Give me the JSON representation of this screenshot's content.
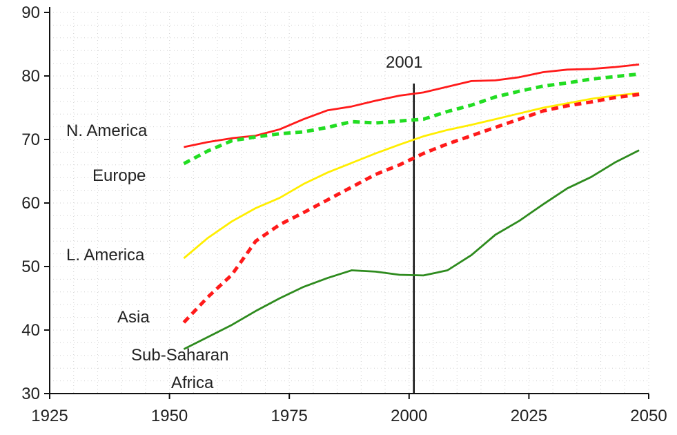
{
  "chart_data": {
    "type": "line",
    "title": "",
    "xlabel": "",
    "ylabel": "",
    "xlim": [
      1925,
      2050
    ],
    "ylim": [
      30,
      90
    ],
    "xticks": [
      1925,
      1950,
      1975,
      2000,
      2025,
      2050
    ],
    "yticks": [
      30,
      40,
      50,
      60,
      70,
      80,
      90
    ],
    "grid": "dotted",
    "legend": "none",
    "annotations": [
      {
        "text": "2001",
        "x": 2001,
        "kind": "vertical-line"
      }
    ],
    "series": [
      {
        "name": "N. America",
        "label_lines": [
          "N. America"
        ],
        "color": "#ff1a1a",
        "style": "solid",
        "x": [
          1953,
          1958,
          1963,
          1968,
          1973,
          1978,
          1983,
          1988,
          1993,
          1998,
          2003,
          2008,
          2013,
          2018,
          2023,
          2028,
          2033,
          2038,
          2043,
          2048
        ],
        "y": [
          68.8,
          69.6,
          70.2,
          70.6,
          71.6,
          73.2,
          74.6,
          75.2,
          76.1,
          76.9,
          77.4,
          78.3,
          79.2,
          79.3,
          79.8,
          80.6,
          81.0,
          81.1,
          81.4,
          81.8
        ]
      },
      {
        "name": "Europe",
        "label_lines": [
          "Europe"
        ],
        "color": "#22dd22",
        "style": "dashed",
        "x": [
          1953,
          1958,
          1963,
          1968,
          1973,
          1978,
          1983,
          1988,
          1993,
          1998,
          2003,
          2008,
          2013,
          2018,
          2023,
          2028,
          2033,
          2038,
          2043,
          2048
        ],
        "y": [
          66.2,
          68.2,
          69.8,
          70.4,
          70.9,
          71.2,
          71.9,
          72.8,
          72.6,
          72.9,
          73.2,
          74.4,
          75.4,
          76.7,
          77.6,
          78.4,
          78.9,
          79.5,
          79.9,
          80.3
        ]
      },
      {
        "name": "L. America",
        "label_lines": [
          "L. America"
        ],
        "color": "#ffee00",
        "style": "solid",
        "x": [
          1953,
          1958,
          1963,
          1968,
          1973,
          1978,
          1983,
          1988,
          1993,
          1998,
          2003,
          2008,
          2013,
          2018,
          2023,
          2028,
          2033,
          2038,
          2043,
          2048
        ],
        "y": [
          51.3,
          54.5,
          57.1,
          59.2,
          60.8,
          63.0,
          64.8,
          66.3,
          67.8,
          69.2,
          70.5,
          71.5,
          72.3,
          73.2,
          74.1,
          75.0,
          75.7,
          76.4,
          76.9,
          77.3
        ]
      },
      {
        "name": "Asia",
        "label_lines": [
          "Asia"
        ],
        "color": "#ff1a1a",
        "style": "dashed",
        "x": [
          1953,
          1958,
          1963,
          1968,
          1973,
          1978,
          1983,
          1988,
          1993,
          1998,
          2003,
          2008,
          2013,
          2018,
          2023,
          2028,
          2033,
          2038,
          2043,
          2048
        ],
        "y": [
          41.2,
          45.2,
          48.7,
          54.0,
          56.6,
          58.5,
          60.5,
          62.5,
          64.5,
          66.0,
          67.8,
          69.3,
          70.6,
          71.9,
          73.2,
          74.5,
          75.3,
          75.9,
          76.6,
          77.1
        ]
      },
      {
        "name": "Sub-Saharan Africa",
        "label_lines": [
          "Sub-Saharan",
          "Africa"
        ],
        "color": "#2e8b1e",
        "style": "solid",
        "x": [
          1953,
          1958,
          1963,
          1968,
          1973,
          1978,
          1983,
          1988,
          1993,
          1998,
          2003,
          2008,
          2013,
          2018,
          2023,
          2028,
          2033,
          2038,
          2043,
          2048
        ],
        "y": [
          37.0,
          38.9,
          40.8,
          43.0,
          45.0,
          46.8,
          48.2,
          49.4,
          49.2,
          48.7,
          48.6,
          49.4,
          51.8,
          55.0,
          57.2,
          59.8,
          62.3,
          64.1,
          66.4,
          68.3
        ]
      }
    ]
  }
}
